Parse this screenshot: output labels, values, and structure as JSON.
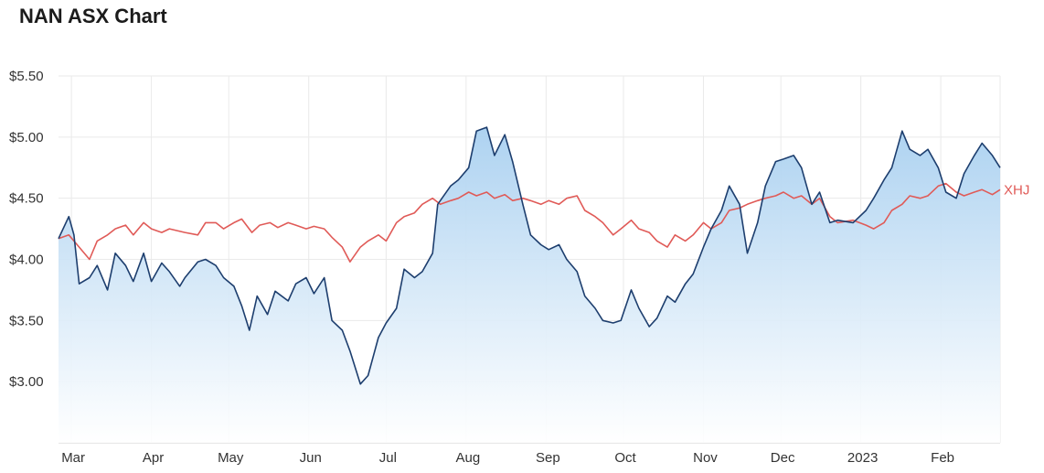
{
  "title": "NAN ASX Chart",
  "chart_data": {
    "type": "line",
    "title": "NAN ASX Chart",
    "y_tick_labels": [
      "$3.00",
      "$3.50",
      "$4.00",
      "$4.50",
      "$5.00",
      "$5.50"
    ],
    "y_tick_values": [
      3.0,
      3.5,
      4.0,
      4.5,
      5.0,
      5.5
    ],
    "ylim": [
      2.5,
      5.5
    ],
    "x_tick_labels": [
      "Mar",
      "Apr",
      "May",
      "Jun",
      "Jul",
      "Aug",
      "Sep",
      "Oct",
      "Nov",
      "Dec",
      "2023",
      "Feb"
    ],
    "x_tick_dates": [
      "2022-03-01",
      "2022-04-01",
      "2022-05-01",
      "2022-06-01",
      "2022-07-01",
      "2022-08-01",
      "2022-09-01",
      "2022-10-01",
      "2022-11-01",
      "2022-12-01",
      "2023-01-01",
      "2023-02-01"
    ],
    "x_range": [
      "2022-02-24",
      "2023-02-24"
    ],
    "grid": true,
    "colors": {
      "nan": "#1d3e6e",
      "xhj": "#e05a57",
      "area_top": "#a9d0f0",
      "grid": "#eaeaea"
    },
    "series": [
      {
        "name": "",
        "type": "area",
        "points": [
          [
            "2022-02-24",
            4.17
          ],
          [
            "2022-02-28",
            4.35
          ],
          [
            "2022-03-02",
            4.2
          ],
          [
            "2022-03-04",
            3.8
          ],
          [
            "2022-03-08",
            3.85
          ],
          [
            "2022-03-11",
            3.95
          ],
          [
            "2022-03-15",
            3.75
          ],
          [
            "2022-03-18",
            4.05
          ],
          [
            "2022-03-22",
            3.95
          ],
          [
            "2022-03-25",
            3.82
          ],
          [
            "2022-03-29",
            4.05
          ],
          [
            "2022-04-01",
            3.82
          ],
          [
            "2022-04-05",
            3.97
          ],
          [
            "2022-04-08",
            3.9
          ],
          [
            "2022-04-12",
            3.78
          ],
          [
            "2022-04-14",
            3.85
          ],
          [
            "2022-04-19",
            3.98
          ],
          [
            "2022-04-22",
            4.0
          ],
          [
            "2022-04-26",
            3.95
          ],
          [
            "2022-04-29",
            3.85
          ],
          [
            "2022-05-03",
            3.78
          ],
          [
            "2022-05-06",
            3.62
          ],
          [
            "2022-05-09",
            3.42
          ],
          [
            "2022-05-12",
            3.7
          ],
          [
            "2022-05-16",
            3.55
          ],
          [
            "2022-05-19",
            3.74
          ],
          [
            "2022-05-24",
            3.66
          ],
          [
            "2022-05-27",
            3.8
          ],
          [
            "2022-05-31",
            3.85
          ],
          [
            "2022-06-03",
            3.72
          ],
          [
            "2022-06-07",
            3.85
          ],
          [
            "2022-06-10",
            3.5
          ],
          [
            "2022-06-14",
            3.42
          ],
          [
            "2022-06-17",
            3.25
          ],
          [
            "2022-06-21",
            2.98
          ],
          [
            "2022-06-24",
            3.05
          ],
          [
            "2022-06-28",
            3.36
          ],
          [
            "2022-07-01",
            3.48
          ],
          [
            "2022-07-05",
            3.6
          ],
          [
            "2022-07-08",
            3.92
          ],
          [
            "2022-07-12",
            3.85
          ],
          [
            "2022-07-15",
            3.9
          ],
          [
            "2022-07-19",
            4.05
          ],
          [
            "2022-07-21",
            4.45
          ],
          [
            "2022-07-26",
            4.6
          ],
          [
            "2022-07-29",
            4.65
          ],
          [
            "2022-08-02",
            4.75
          ],
          [
            "2022-08-05",
            5.05
          ],
          [
            "2022-08-09",
            5.08
          ],
          [
            "2022-08-12",
            4.85
          ],
          [
            "2022-08-16",
            5.02
          ],
          [
            "2022-08-19",
            4.8
          ],
          [
            "2022-08-23",
            4.45
          ],
          [
            "2022-08-26",
            4.2
          ],
          [
            "2022-08-30",
            4.12
          ],
          [
            "2022-09-02",
            4.08
          ],
          [
            "2022-09-06",
            4.12
          ],
          [
            "2022-09-09",
            4.0
          ],
          [
            "2022-09-13",
            3.9
          ],
          [
            "2022-09-16",
            3.7
          ],
          [
            "2022-09-20",
            3.6
          ],
          [
            "2022-09-23",
            3.5
          ],
          [
            "2022-09-27",
            3.48
          ],
          [
            "2022-09-30",
            3.5
          ],
          [
            "2022-10-04",
            3.75
          ],
          [
            "2022-10-07",
            3.6
          ],
          [
            "2022-10-11",
            3.45
          ],
          [
            "2022-10-14",
            3.52
          ],
          [
            "2022-10-18",
            3.7
          ],
          [
            "2022-10-21",
            3.65
          ],
          [
            "2022-10-25",
            3.8
          ],
          [
            "2022-10-28",
            3.88
          ],
          [
            "2022-11-01",
            4.1
          ],
          [
            "2022-11-04",
            4.25
          ],
          [
            "2022-11-08",
            4.4
          ],
          [
            "2022-11-11",
            4.6
          ],
          [
            "2022-11-15",
            4.45
          ],
          [
            "2022-11-18",
            4.05
          ],
          [
            "2022-11-22",
            4.3
          ],
          [
            "2022-11-25",
            4.6
          ],
          [
            "2022-11-29",
            4.8
          ],
          [
            "2022-12-02",
            4.82
          ],
          [
            "2022-12-06",
            4.85
          ],
          [
            "2022-12-09",
            4.75
          ],
          [
            "2022-12-13",
            4.45
          ],
          [
            "2022-12-16",
            4.55
          ],
          [
            "2022-12-20",
            4.3
          ],
          [
            "2022-12-23",
            4.32
          ],
          [
            "2022-12-29",
            4.3
          ],
          [
            "2023-01-03",
            4.4
          ],
          [
            "2023-01-06",
            4.5
          ],
          [
            "2023-01-10",
            4.65
          ],
          [
            "2023-01-13",
            4.75
          ],
          [
            "2023-01-17",
            5.05
          ],
          [
            "2023-01-20",
            4.9
          ],
          [
            "2023-01-24",
            4.85
          ],
          [
            "2023-01-27",
            4.9
          ],
          [
            "2023-01-31",
            4.75
          ],
          [
            "2023-02-03",
            4.55
          ],
          [
            "2023-02-07",
            4.5
          ],
          [
            "2023-02-10",
            4.7
          ],
          [
            "2023-02-14",
            4.85
          ],
          [
            "2023-02-17",
            4.95
          ],
          [
            "2023-02-21",
            4.85
          ],
          [
            "2023-02-24",
            4.75
          ]
        ]
      },
      {
        "name": "XHJ",
        "type": "line",
        "points": [
          [
            "2022-02-24",
            4.17
          ],
          [
            "2022-02-28",
            4.2
          ],
          [
            "2022-03-04",
            4.1
          ],
          [
            "2022-03-08",
            4.0
          ],
          [
            "2022-03-11",
            4.15
          ],
          [
            "2022-03-15",
            4.2
          ],
          [
            "2022-03-18",
            4.25
          ],
          [
            "2022-03-22",
            4.28
          ],
          [
            "2022-03-25",
            4.2
          ],
          [
            "2022-03-29",
            4.3
          ],
          [
            "2022-04-01",
            4.25
          ],
          [
            "2022-04-05",
            4.22
          ],
          [
            "2022-04-08",
            4.25
          ],
          [
            "2022-04-14",
            4.22
          ],
          [
            "2022-04-19",
            4.2
          ],
          [
            "2022-04-22",
            4.3
          ],
          [
            "2022-04-26",
            4.3
          ],
          [
            "2022-04-29",
            4.25
          ],
          [
            "2022-05-03",
            4.3
          ],
          [
            "2022-05-06",
            4.33
          ],
          [
            "2022-05-10",
            4.22
          ],
          [
            "2022-05-13",
            4.28
          ],
          [
            "2022-05-17",
            4.3
          ],
          [
            "2022-05-20",
            4.26
          ],
          [
            "2022-05-24",
            4.3
          ],
          [
            "2022-05-27",
            4.28
          ],
          [
            "2022-05-31",
            4.25
          ],
          [
            "2022-06-03",
            4.27
          ],
          [
            "2022-06-07",
            4.25
          ],
          [
            "2022-06-10",
            4.18
          ],
          [
            "2022-06-14",
            4.1
          ],
          [
            "2022-06-17",
            3.98
          ],
          [
            "2022-06-21",
            4.1
          ],
          [
            "2022-06-24",
            4.15
          ],
          [
            "2022-06-28",
            4.2
          ],
          [
            "2022-07-01",
            4.15
          ],
          [
            "2022-07-05",
            4.3
          ],
          [
            "2022-07-08",
            4.35
          ],
          [
            "2022-07-12",
            4.38
          ],
          [
            "2022-07-15",
            4.45
          ],
          [
            "2022-07-19",
            4.5
          ],
          [
            "2022-07-22",
            4.45
          ],
          [
            "2022-07-26",
            4.48
          ],
          [
            "2022-07-29",
            4.5
          ],
          [
            "2022-08-02",
            4.55
          ],
          [
            "2022-08-05",
            4.52
          ],
          [
            "2022-08-09",
            4.55
          ],
          [
            "2022-08-12",
            4.5
          ],
          [
            "2022-08-16",
            4.53
          ],
          [
            "2022-08-19",
            4.48
          ],
          [
            "2022-08-23",
            4.5
          ],
          [
            "2022-08-26",
            4.48
          ],
          [
            "2022-08-30",
            4.45
          ],
          [
            "2022-09-02",
            4.48
          ],
          [
            "2022-09-06",
            4.45
          ],
          [
            "2022-09-09",
            4.5
          ],
          [
            "2022-09-13",
            4.52
          ],
          [
            "2022-09-16",
            4.4
          ],
          [
            "2022-09-20",
            4.35
          ],
          [
            "2022-09-23",
            4.3
          ],
          [
            "2022-09-27",
            4.2
          ],
          [
            "2022-09-30",
            4.25
          ],
          [
            "2022-10-04",
            4.32
          ],
          [
            "2022-10-07",
            4.25
          ],
          [
            "2022-10-11",
            4.22
          ],
          [
            "2022-10-14",
            4.15
          ],
          [
            "2022-10-18",
            4.1
          ],
          [
            "2022-10-21",
            4.2
          ],
          [
            "2022-10-25",
            4.15
          ],
          [
            "2022-10-28",
            4.2
          ],
          [
            "2022-11-01",
            4.3
          ],
          [
            "2022-11-04",
            4.25
          ],
          [
            "2022-11-08",
            4.3
          ],
          [
            "2022-11-11",
            4.4
          ],
          [
            "2022-11-15",
            4.42
          ],
          [
            "2022-11-18",
            4.45
          ],
          [
            "2022-11-22",
            4.48
          ],
          [
            "2022-11-25",
            4.5
          ],
          [
            "2022-11-29",
            4.52
          ],
          [
            "2022-12-02",
            4.55
          ],
          [
            "2022-12-06",
            4.5
          ],
          [
            "2022-12-09",
            4.52
          ],
          [
            "2022-12-13",
            4.45
          ],
          [
            "2022-12-16",
            4.5
          ],
          [
            "2022-12-20",
            4.35
          ],
          [
            "2022-12-23",
            4.3
          ],
          [
            "2022-12-29",
            4.32
          ],
          [
            "2023-01-03",
            4.28
          ],
          [
            "2023-01-06",
            4.25
          ],
          [
            "2023-01-10",
            4.3
          ],
          [
            "2023-01-13",
            4.4
          ],
          [
            "2023-01-17",
            4.45
          ],
          [
            "2023-01-20",
            4.52
          ],
          [
            "2023-01-24",
            4.5
          ],
          [
            "2023-01-27",
            4.52
          ],
          [
            "2023-01-31",
            4.6
          ],
          [
            "2023-02-03",
            4.62
          ],
          [
            "2023-02-07",
            4.55
          ],
          [
            "2023-02-10",
            4.52
          ],
          [
            "2023-02-14",
            4.55
          ],
          [
            "2023-02-17",
            4.57
          ],
          [
            "2023-02-21",
            4.53
          ],
          [
            "2023-02-24",
            4.57
          ]
        ]
      }
    ]
  }
}
